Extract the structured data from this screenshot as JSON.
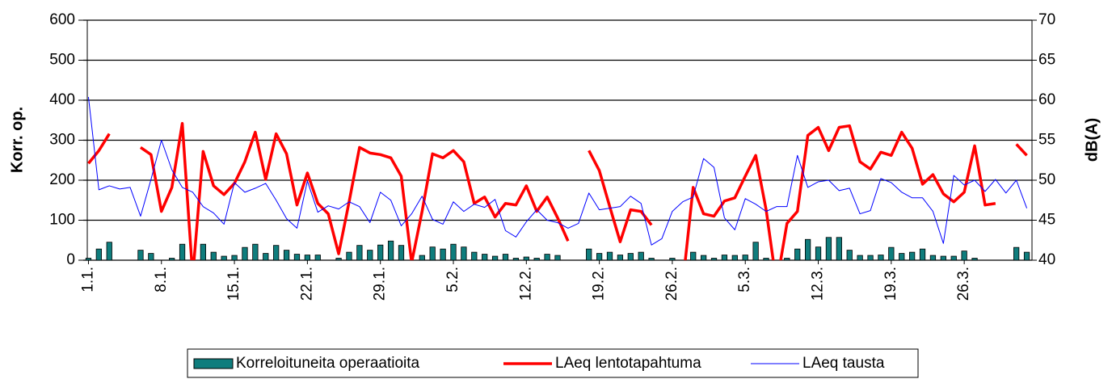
{
  "chart_data": {
    "type": "bar",
    "ylabel": "Korr. op.",
    "y2label": "dB(A)",
    "ylim": [
      0,
      600
    ],
    "yticks": [
      0,
      100,
      200,
      300,
      400,
      500,
      600
    ],
    "y2lim": [
      40,
      70
    ],
    "y2ticks": [
      40,
      45,
      50,
      55,
      60,
      65,
      70
    ],
    "grid": true,
    "legend": "bottom",
    "categories": [
      "1.1.",
      null,
      null,
      null,
      null,
      null,
      null,
      "8.1.",
      null,
      null,
      null,
      null,
      null,
      null,
      "15.1.",
      null,
      null,
      null,
      null,
      null,
      null,
      "22.1.",
      null,
      null,
      null,
      null,
      null,
      null,
      "29.1.",
      null,
      null,
      null,
      null,
      null,
      null,
      "5.2.",
      null,
      null,
      null,
      null,
      null,
      null,
      "12.2.",
      null,
      null,
      null,
      null,
      null,
      null,
      "19.2.",
      null,
      null,
      null,
      null,
      null,
      null,
      "26.2.",
      null,
      null,
      null,
      null,
      null,
      null,
      "5.3.",
      null,
      null,
      null,
      null,
      null,
      null,
      "12.3.",
      null,
      null,
      null,
      null,
      null,
      null,
      "19.3.",
      null,
      null,
      null,
      null,
      null,
      null,
      "26.3.",
      null,
      null,
      null,
      null,
      null,
      null
    ],
    "series": [
      {
        "name": "Korreloituneita operaatioita",
        "type": "bar",
        "color": "#0f7d7d",
        "values": [
          5,
          28,
          45,
          0,
          0,
          25,
          17,
          0,
          5,
          40,
          0,
          40,
          20,
          10,
          12,
          32,
          40,
          17,
          37,
          25,
          15,
          13,
          13,
          0,
          5,
          20,
          37,
          25,
          38,
          48,
          37,
          0,
          12,
          33,
          28,
          40,
          33,
          20,
          15,
          10,
          15,
          5,
          8,
          5,
          15,
          12,
          0,
          0,
          28,
          17,
          20,
          13,
          17,
          20,
          5,
          0,
          5,
          0,
          20,
          12,
          5,
          13,
          12,
          13,
          45,
          5,
          0,
          5,
          28,
          52,
          33,
          57,
          57,
          25,
          12,
          12,
          13,
          32,
          17,
          20,
          28,
          12,
          10,
          10,
          23,
          5,
          0,
          0,
          0,
          32,
          20
        ]
      },
      {
        "name": "LAeq lentotapahtuma",
        "type": "line",
        "axis": "y2",
        "color": "#ff0000",
        "values": [
          52.1,
          53.7,
          55.8,
          null,
          null,
          54.1,
          53.2,
          46.1,
          49.1,
          57.1,
          38,
          53.6,
          49.3,
          48.2,
          49.6,
          52.3,
          56.0,
          50.1,
          55.8,
          53.3,
          46.9,
          50.9,
          47.1,
          45.8,
          40.8,
          47.3,
          54.1,
          53.4,
          53.2,
          52.8,
          50.5,
          39.7,
          46.1,
          53.3,
          52.8,
          53.7,
          52.3,
          47.1,
          47.9,
          45.4,
          47.1,
          46.9,
          49.3,
          46.1,
          47.9,
          45.3,
          42.4,
          null,
          53.7,
          51.2,
          46.7,
          42.3,
          46.3,
          46.1,
          44.4,
          null,
          39.8,
          37,
          49.1,
          45.8,
          45.5,
          47.4,
          47.8,
          50.5,
          53.1,
          46.3,
          37,
          44.6,
          46.1,
          55.6,
          56.6,
          53.7,
          56.6,
          56.8,
          52.3,
          51.4,
          53.5,
          53.1,
          56.0,
          54.0,
          49.5,
          50.7,
          48.3,
          47.3,
          48.5,
          54.3,
          46.9,
          47.1,
          null,
          54.5,
          53.1
        ]
      },
      {
        "name": "LAeq tausta",
        "type": "line",
        "axis": "y2",
        "color": "#0000ff",
        "values": [
          60.4,
          48.8,
          49.3,
          48.9,
          49.1,
          45.5,
          50.1,
          55.0,
          51.3,
          49.1,
          48.5,
          46.7,
          45.9,
          44.5,
          49.7,
          48.5,
          49.0,
          49.6,
          47.5,
          45.2,
          44.0,
          49.9,
          46.0,
          46.8,
          46.4,
          47.3,
          46.7,
          44.7,
          48.5,
          47.5,
          44.3,
          45.8,
          48.0,
          45.1,
          44.5,
          47.3,
          46.1,
          47.0,
          46.6,
          47.6,
          43.7,
          42.9,
          44.8,
          46.3,
          45.0,
          44.7,
          44.0,
          44.6,
          48.4,
          46.3,
          46.5,
          46.7,
          48.0,
          47.1,
          41.9,
          42.7,
          46.1,
          47.3,
          47.9,
          52.7,
          51.6,
          45.3,
          43.8,
          47.7,
          47.0,
          46.1,
          46.7,
          46.7,
          53.1,
          49.1,
          49.8,
          50.0,
          48.7,
          49.0,
          45.8,
          46.2,
          50.2,
          49.7,
          48.5,
          47.8,
          47.8,
          46.1,
          42.1,
          50.6,
          49.4,
          50.0,
          48.6,
          50.1,
          48.4,
          50.0,
          46.5
        ]
      }
    ]
  }
}
